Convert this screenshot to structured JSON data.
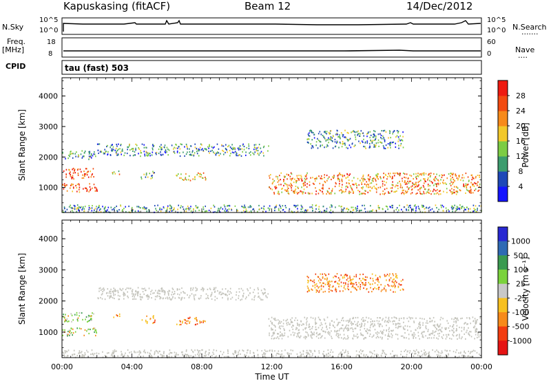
{
  "header": {
    "station": "Kapuskasing (fitACF)",
    "beam": "Beam 12",
    "date": "14/Dec/2012"
  },
  "left_labels": {
    "nsky": "N.Sky",
    "freq_top": "Freq.",
    "freq_unit": "[MHz]",
    "cpid": "CPID"
  },
  "right_labels": {
    "nsearch": "N.Search",
    "nsearch_dots": ".......",
    "nave": "Nave",
    "nave_dots": "...."
  },
  "noise_panel": {
    "left_ticks": [
      "10^5",
      "10^0"
    ],
    "right_ticks": [
      "10^5",
      "10^0"
    ]
  },
  "freq_panel": {
    "left_ticks": [
      "18",
      "8"
    ],
    "right_ticks": [
      "60",
      "0"
    ]
  },
  "cpid_panel": {
    "text": "tau (fast) 503"
  },
  "chart_data": [
    {
      "type": "heatmap",
      "panel": "power",
      "xlabel": "",
      "ylabel": "Slant Range [km]",
      "x_ticks": [
        "00:00",
        "04:00",
        "08:00",
        "12:00",
        "16:00",
        "20:00",
        "00:00"
      ],
      "y_ticks": [
        1000,
        2000,
        3000,
        4000
      ],
      "xlim_hours": [
        0,
        24
      ],
      "ylim": [
        180,
        4600
      ],
      "colorbar": {
        "label": "Power [dB]",
        "ticks": [
          "4",
          "8",
          "12",
          "16",
          "20",
          "24",
          "28"
        ],
        "colors": [
          "#1414ff",
          "#1e48b8",
          "#3c9c6e",
          "#7ccc44",
          "#f2c82a",
          "#f78a1a",
          "#f24a10",
          "#ee1a10"
        ]
      },
      "echo_regions_hours_km": [
        {
          "x": [
            0.0,
            1.9
          ],
          "y": [
            1950,
            2250
          ],
          "level": 2
        },
        {
          "x": [
            0.0,
            1.8
          ],
          "y": [
            1300,
            1650
          ],
          "level": 6
        },
        {
          "x": [
            0.0,
            2.0
          ],
          "y": [
            850,
            1150
          ],
          "level": 6
        },
        {
          "x": [
            2.8,
            3.3
          ],
          "y": [
            1450,
            1600
          ],
          "level": 4
        },
        {
          "x": [
            4.5,
            5.3
          ],
          "y": [
            1300,
            1550
          ],
          "level": 3
        },
        {
          "x": [
            6.5,
            8.2
          ],
          "y": [
            1250,
            1500
          ],
          "level": 4
        },
        {
          "x": [
            2.0,
            11.8
          ],
          "y": [
            2050,
            2450
          ],
          "level": 2
        },
        {
          "x": [
            11.8,
            23.9
          ],
          "y": [
            800,
            1500
          ],
          "level": 5
        },
        {
          "x": [
            14.0,
            19.5
          ],
          "y": [
            2300,
            2900
          ],
          "level": 2
        },
        {
          "x": [
            0.0,
            24.0
          ],
          "y": [
            200,
            450
          ],
          "level": 2
        }
      ]
    },
    {
      "type": "heatmap",
      "panel": "velocity",
      "xlabel": "Time UT",
      "ylabel": "Slant Range [km]",
      "x_ticks": [
        "00:00",
        "04:00",
        "08:00",
        "12:00",
        "16:00",
        "20:00",
        "00:00"
      ],
      "y_ticks": [
        1000,
        2000,
        3000,
        4000
      ],
      "xlim_hours": [
        0,
        24
      ],
      "ylim": [
        180,
        4600
      ],
      "colorbar": {
        "label": "Velocity [m s⁻¹]",
        "ticks": [
          "1000",
          "500",
          "100",
          "25",
          "-25",
          "-100",
          "-500",
          "-1000"
        ],
        "colors": [
          "#2828d2",
          "#2e6ab4",
          "#3a9a50",
          "#7ad23c",
          "#c8c8c8",
          "#f7c020",
          "#f78a1a",
          "#f23c10",
          "#e61414"
        ]
      },
      "ground_scatter_color": "#c4c4bc",
      "echo_regions_hours_km": [
        {
          "x": [
            0.0,
            1.8
          ],
          "y": [
            1350,
            1650
          ],
          "kind": "mixed"
        },
        {
          "x": [
            0.0,
            2.0
          ],
          "y": [
            900,
            1150
          ],
          "kind": "mixed"
        },
        {
          "x": [
            2.8,
            3.3
          ],
          "y": [
            1450,
            1600
          ],
          "kind": "negative"
        },
        {
          "x": [
            4.5,
            5.3
          ],
          "y": [
            1300,
            1550
          ],
          "kind": "negative"
        },
        {
          "x": [
            6.5,
            8.2
          ],
          "y": [
            1250,
            1500
          ],
          "kind": "negative"
        },
        {
          "x": [
            2.0,
            11.8
          ],
          "y": [
            2050,
            2450
          ],
          "kind": "ground"
        },
        {
          "x": [
            11.8,
            23.9
          ],
          "y": [
            800,
            1500
          ],
          "kind": "ground"
        },
        {
          "x": [
            14.0,
            19.5
          ],
          "y": [
            2300,
            2900
          ],
          "kind": "negative"
        },
        {
          "x": [
            0.0,
            24.0
          ],
          "y": [
            200,
            450
          ],
          "kind": "ground"
        }
      ]
    }
  ]
}
